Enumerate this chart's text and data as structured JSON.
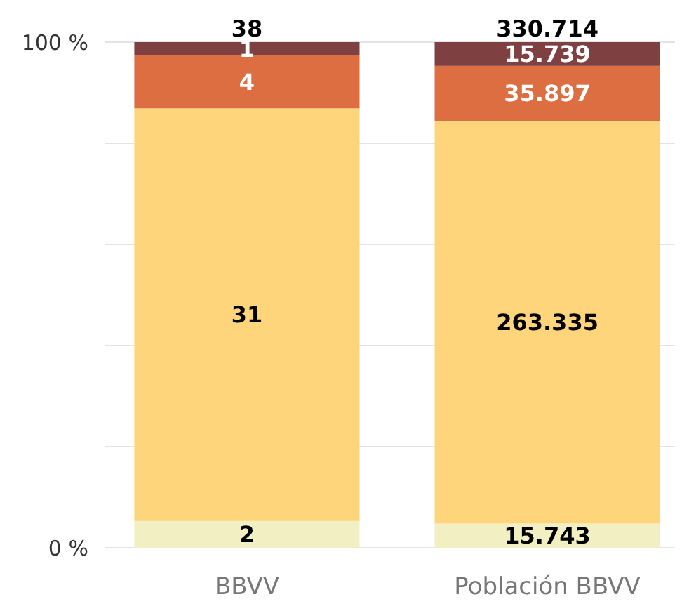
{
  "chart_data": {
    "type": "bar",
    "stacked": true,
    "categories": [
      "BBVV",
      "Población BBVV"
    ],
    "series": [
      {
        "color": "#f2efc2",
        "values": [
          5.3,
          4.8
        ]
      },
      {
        "color": "#fed57a",
        "values": [
          81.6,
          79.6
        ]
      },
      {
        "color": "#dd6e42",
        "values": [
          10.5,
          10.9
        ]
      },
      {
        "color": "#7e4040",
        "values": [
          2.6,
          4.7
        ]
      }
    ],
    "annotations": [
      {
        "text": "2",
        "x": "BBVV",
        "y": 0
      },
      "31",
      {
        "text": "4",
        "x": "BBVV",
        "y": 86.9
      },
      {
        "text": "1",
        "x": "BBVV",
        "y": 97.4
      },
      {
        "text": "38",
        "x": "BBVV",
        "y": 100
      },
      {
        "text": "15.743",
        "x": "Población BBVV",
        "y": 0
      },
      "263.335",
      {
        "text": "35.897",
        "x": "Población BBVV",
        "y": 84.4
      },
      {
        "text": "15.739",
        "x": "Población BBVV",
        "y": 95.3
      },
      {
        "text": "330.714",
        "x": "Población BBVV",
        "y": 100
      }
    ],
    "ylim": [
      0,
      100
    ],
    "yticks": [
      {
        "value": 0,
        "label": "0 %"
      },
      {
        "value": 20,
        "label": null
      },
      {
        "value": 40,
        "label": null
      },
      {
        "value": 60,
        "label": null
      },
      {
        "value": 80,
        "label": null
      },
      {
        "value": 100,
        "label": "100 %"
      }
    ],
    "grid": "y"
  }
}
